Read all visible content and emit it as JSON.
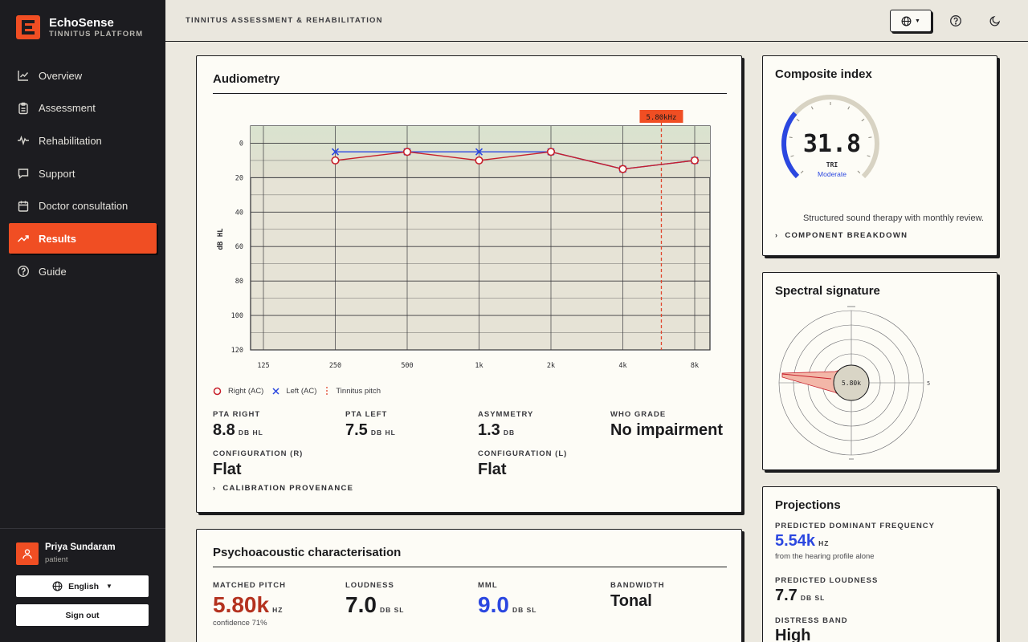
{
  "brand": {
    "name": "EchoSense",
    "subtitle": "TINNITUS PLATFORM"
  },
  "nav": [
    {
      "label": "Overview",
      "icon": "chart-line-icon"
    },
    {
      "label": "Assessment",
      "icon": "clipboard-icon"
    },
    {
      "label": "Rehabilitation",
      "icon": "waveform-icon"
    },
    {
      "label": "Support",
      "icon": "chat-bubble-icon"
    },
    {
      "label": "Doctor consultation",
      "icon": "calendar-icon"
    },
    {
      "label": "Results",
      "icon": "trend-up-icon",
      "active": true
    },
    {
      "label": "Guide",
      "icon": "help-circle-icon"
    }
  ],
  "user": {
    "name": "Priya Sundaram",
    "role": "patient"
  },
  "sidebar_buttons": {
    "language": "English",
    "signout": "Sign out"
  },
  "header": {
    "breadcrumb": "TINNITUS ASSESSMENT & REHABILITATION"
  },
  "colors": {
    "accent": "#f04e23",
    "right_ear": "#c8202c",
    "left_ear": "#2b47e0",
    "sidebar": "#1c1c20"
  },
  "audiometry": {
    "title": "Audiometry",
    "legend": {
      "right": "Right (AC)",
      "left": "Left (AC)",
      "pitch": "Tinnitus pitch"
    },
    "pitch_marker": "5.80kHz",
    "stats": {
      "pta_right_label": "PTA RIGHT",
      "pta_right_value": "8.8",
      "pta_right_unit": "DB HL",
      "pta_left_label": "PTA LEFT",
      "pta_left_value": "7.5",
      "pta_left_unit": "DB HL",
      "asym_label": "ASYMMETRY",
      "asym_value": "1.3",
      "asym_unit": "DB",
      "who_label": "WHO GRADE",
      "who_value": "No impairment",
      "config_r_label": "CONFIGURATION (R)",
      "config_r_value": "Flat",
      "config_l_label": "CONFIGURATION (L)",
      "config_l_value": "Flat"
    },
    "expander": "CALIBRATION PROVENANCE"
  },
  "chart_data": {
    "type": "line",
    "title": "",
    "xlabel": "",
    "ylabel": "dB HL",
    "x": [
      "125",
      "250",
      "500",
      "1k",
      "2k",
      "4k",
      "8k"
    ],
    "ylim": [
      -10,
      120
    ],
    "y_ticks": [
      "0",
      "20",
      "40",
      "60",
      "80",
      "100",
      "120"
    ],
    "y_inverted": true,
    "grid": true,
    "legend_position": "bottom-left",
    "series": [
      {
        "name": "Right (AC)",
        "marker": "circle",
        "x": [
          "250",
          "500",
          "1k",
          "2k",
          "4k",
          "8k"
        ],
        "values": [
          10,
          5,
          10,
          5,
          15,
          10
        ]
      },
      {
        "name": "Left (AC)",
        "marker": "x",
        "x": [
          "250",
          "500",
          "1k",
          "2k",
          "4k",
          "8k"
        ],
        "values": [
          5,
          5,
          5,
          5,
          15,
          10
        ]
      }
    ],
    "annotations": [
      {
        "type": "vline",
        "x_khz": 5.8,
        "label": "5.80kHz"
      }
    ]
  },
  "psycho": {
    "title": "Psychoacoustic characterisation",
    "pitch_label": "MATCHED PITCH",
    "pitch_value": "5.80k",
    "pitch_unit": "HZ",
    "pitch_note": "confidence 71%",
    "loud_label": "LOUDNESS",
    "loud_value": "7.0",
    "loud_unit": "DB SL",
    "mml_label": "MML",
    "mml_value": "9.0",
    "mml_unit": "DB SL",
    "bw_label": "BANDWIDTH",
    "bw_value": "Tonal"
  },
  "composite": {
    "title": "Composite index",
    "value": "31.8",
    "unit": "TRI",
    "band": "Moderate",
    "fraction": 0.318,
    "note": "Structured sound therapy with monthly review.",
    "expander": "COMPONENT BREAKDOWN"
  },
  "spectral": {
    "title": "Spectral signature",
    "center": "5.80k",
    "right_tick": "5"
  },
  "projections": {
    "title": "Projections",
    "freq_label": "PREDICTED DOMINANT FREQUENCY",
    "freq_value": "5.54k",
    "freq_unit": "HZ",
    "freq_note": "from the hearing profile alone",
    "loud_label": "PREDICTED LOUDNESS",
    "loud_value": "7.7",
    "loud_unit": "DB SL",
    "distress_label": "DISTRESS BAND",
    "distress_value": "High"
  }
}
